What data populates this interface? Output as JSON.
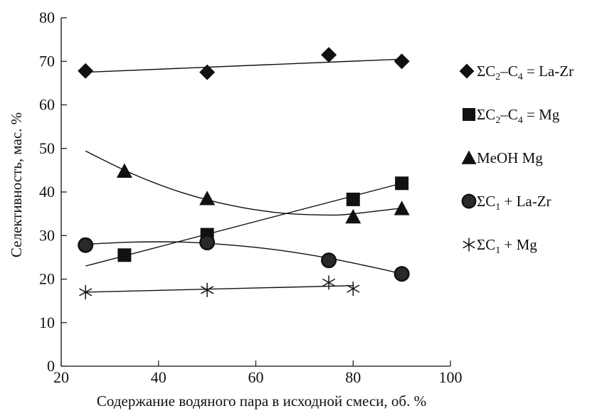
{
  "chart_data": {
    "type": "scatter",
    "title": "",
    "xlabel": "Содержание водяного пара в исходной смеси, об. %",
    "ylabel": "Селективность, мас. %",
    "xlim": [
      20,
      100
    ],
    "ylim": [
      0,
      80
    ],
    "xticks": [
      20,
      40,
      60,
      80,
      100
    ],
    "yticks": [
      0,
      10,
      20,
      30,
      40,
      50,
      60,
      70,
      80
    ],
    "grid": false,
    "legend_position": "right",
    "series": [
      {
        "name": "ΣC2–C4 = La-Zr",
        "label_parts": {
          "pre": "ΣC",
          "sub1": "2",
          "mid": "–C",
          "sub2": "4",
          "post": " = La-Zr"
        },
        "marker": "diamond",
        "points": [
          [
            25,
            67.8
          ],
          [
            50,
            67.5
          ],
          [
            75,
            71.5
          ],
          [
            90,
            70.0
          ]
        ],
        "trend": {
          "kind": "linear",
          "points": [
            [
              25,
              67.5
            ],
            [
              90,
              70.5
            ]
          ]
        }
      },
      {
        "name": "ΣC2–C4 = Mg",
        "label_parts": {
          "pre": "ΣC",
          "sub1": "2",
          "mid": "–C",
          "sub2": "4",
          "post": " = Mg"
        },
        "marker": "square",
        "points": [
          [
            33,
            25.5
          ],
          [
            50,
            30.2
          ],
          [
            80,
            38.3
          ],
          [
            90,
            42.0
          ]
        ],
        "trend": {
          "kind": "linear",
          "points": [
            [
              25,
              23.0
            ],
            [
              90,
              42.0
            ]
          ]
        }
      },
      {
        "name": "MeOH Mg",
        "label_parts": {
          "pre": "MeOH Mg",
          "sub1": "",
          "mid": "",
          "sub2": "",
          "post": ""
        },
        "marker": "triangle",
        "points": [
          [
            33,
            44.8
          ],
          [
            50,
            38.5
          ],
          [
            80,
            34.3
          ],
          [
            90,
            36.2
          ]
        ],
        "trend": {
          "kind": "curve",
          "points": [
            [
              25,
              49.4
            ],
            [
              35,
              44.0
            ],
            [
              45,
              39.8
            ],
            [
              55,
              36.9
            ],
            [
              65,
              35.2
            ],
            [
              75,
              34.7
            ],
            [
              80,
              35.0
            ],
            [
              90,
              36.3
            ]
          ]
        }
      },
      {
        "name": "ΣC1 + La-Zr",
        "label_parts": {
          "pre": "ΣC",
          "sub1": "1",
          "mid": " + La-Zr",
          "sub2": "",
          "post": ""
        },
        "marker": "circle",
        "points": [
          [
            25,
            27.8
          ],
          [
            50,
            28.4
          ],
          [
            75,
            24.3
          ],
          [
            90,
            21.2
          ]
        ],
        "trend": {
          "kind": "curve",
          "points": [
            [
              25,
              28.0
            ],
            [
              35,
              28.5
            ],
            [
              45,
              28.5
            ],
            [
              55,
              27.8
            ],
            [
              65,
              26.6
            ],
            [
              75,
              24.8
            ],
            [
              85,
              22.5
            ],
            [
              90,
              21.2
            ]
          ]
        }
      },
      {
        "name": "ΣC1 + Mg",
        "label_parts": {
          "pre": "ΣC",
          "sub1": "1",
          "mid": " + Mg",
          "sub2": "",
          "post": ""
        },
        "marker": "asterisk",
        "points": [
          [
            25,
            17.0
          ],
          [
            50,
            17.5
          ],
          [
            75,
            19.2
          ],
          [
            80,
            17.8
          ]
        ],
        "trend": {
          "kind": "linear",
          "points": [
            [
              25,
              17.0
            ],
            [
              80,
              18.5
            ]
          ]
        }
      }
    ]
  }
}
